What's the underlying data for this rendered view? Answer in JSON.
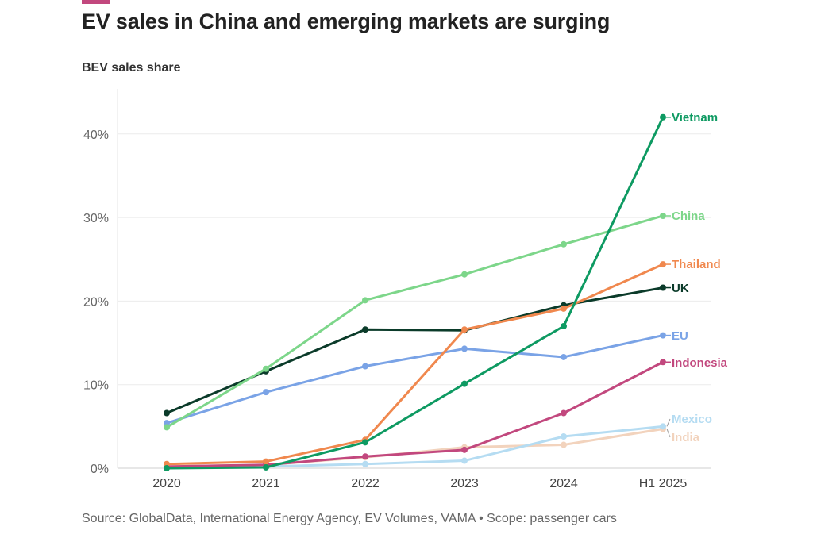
{
  "title": "EV sales in China and emerging markets are surging",
  "subtitle": "BEV sales share",
  "footer": "Source: GlobalData, International Energy Agency, EV Volumes, VAMA • Scope: passenger cars",
  "accent_color": "#c2487e",
  "chart_data": {
    "type": "line",
    "categories": [
      "2020",
      "2021",
      "2022",
      "2023",
      "2024",
      "H1 2025"
    ],
    "y_ticks": [
      "0%",
      "10%",
      "20%",
      "30%",
      "40%"
    ],
    "ylim": [
      0,
      45
    ],
    "grid": true,
    "legend": "direct labels at line ends (right)",
    "series": [
      {
        "name": "Vietnam",
        "color": "#0e9a62",
        "values": [
          0,
          0.1,
          3.1,
          10.1,
          17.0,
          42.0
        ]
      },
      {
        "name": "China",
        "color": "#7dd68a",
        "values": [
          4.9,
          11.9,
          20.1,
          23.2,
          26.8,
          30.2
        ]
      },
      {
        "name": "Thailand",
        "color": "#f0884e",
        "values": [
          0.5,
          0.8,
          3.4,
          16.6,
          19.1,
          24.4
        ]
      },
      {
        "name": "UK",
        "color": "#0b3b2a",
        "values": [
          6.6,
          11.6,
          16.6,
          16.5,
          19.5,
          21.6
        ]
      },
      {
        "name": "EU",
        "color": "#7aa3e6",
        "values": [
          5.4,
          9.1,
          12.2,
          14.3,
          13.3,
          15.9
        ]
      },
      {
        "name": "Indonesia",
        "color": "#c2487e",
        "values": [
          0.2,
          0.4,
          1.4,
          2.2,
          6.6,
          12.7
        ]
      },
      {
        "name": "Mexico",
        "color": "#b5dcf2",
        "values": [
          0.1,
          0.2,
          0.5,
          0.9,
          3.8,
          5.0
        ]
      },
      {
        "name": "India",
        "color": "#f2d3bd",
        "values": [
          0.2,
          0.4,
          1.3,
          2.5,
          2.8,
          4.7
        ]
      }
    ]
  }
}
